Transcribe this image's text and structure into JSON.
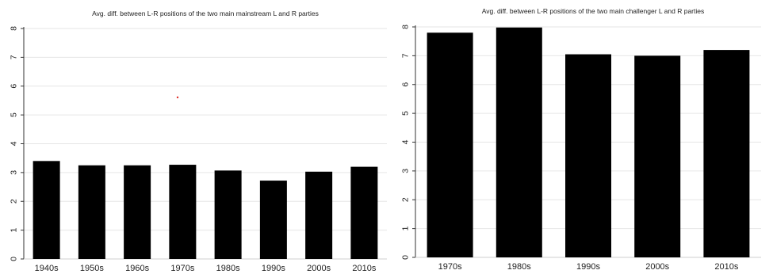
{
  "chart_data": [
    {
      "type": "bar",
      "title": "Avg. diff. between L-R positions of the two main mainstream L and R parties",
      "xlabel": "",
      "ylabel": "",
      "ylim": [
        0,
        8
      ],
      "yticks": [
        "0",
        "1",
        "2",
        "3",
        "4",
        "5",
        "6",
        "7",
        "8"
      ],
      "grid": true,
      "categories": [
        "1940s",
        "1950s",
        "1960s",
        "1970s",
        "1980s",
        "1990s",
        "2000s",
        "2010s"
      ],
      "values": [
        3.4,
        3.25,
        3.25,
        3.27,
        3.07,
        2.72,
        3.03,
        3.2
      ],
      "bar_color": "#000000",
      "annotation_color": "#e0302a"
    },
    {
      "type": "bar",
      "title": "Avg. diff. between L-R positions of the two main challenger L and R parties",
      "xlabel": "",
      "ylabel": "",
      "ylim": [
        0,
        8
      ],
      "yticks": [
        "0",
        "1",
        "2",
        "3",
        "4",
        "5",
        "6",
        "7",
        "8"
      ],
      "grid": true,
      "categories": [
        "1970s",
        "1980s",
        "1990s",
        "2000s",
        "2010s"
      ],
      "values": [
        7.8,
        7.98,
        7.05,
        7.0,
        7.2
      ],
      "bar_color": "#000000"
    }
  ]
}
